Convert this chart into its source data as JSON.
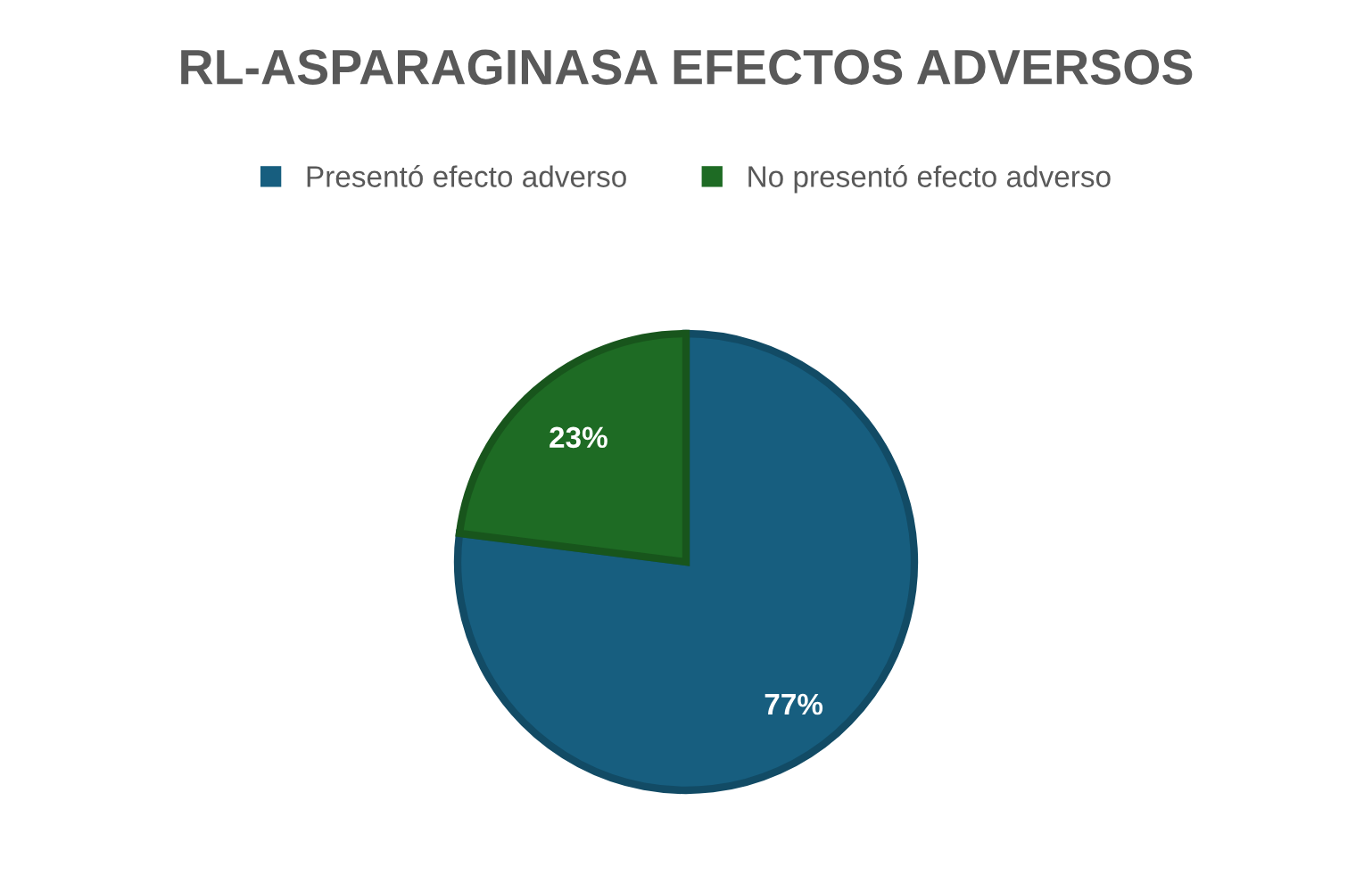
{
  "chart_data": {
    "type": "pie",
    "title": "RL-ASPARAGINASA EFECTOS ADVERSOS",
    "categories": [
      "Presentó efecto adverso",
      "No presentó efecto adverso"
    ],
    "values": [
      77,
      23
    ],
    "colors": [
      "#175e7f",
      "#1e6b24"
    ],
    "value_labels": [
      "77%",
      "23%"
    ],
    "legend": "top"
  }
}
